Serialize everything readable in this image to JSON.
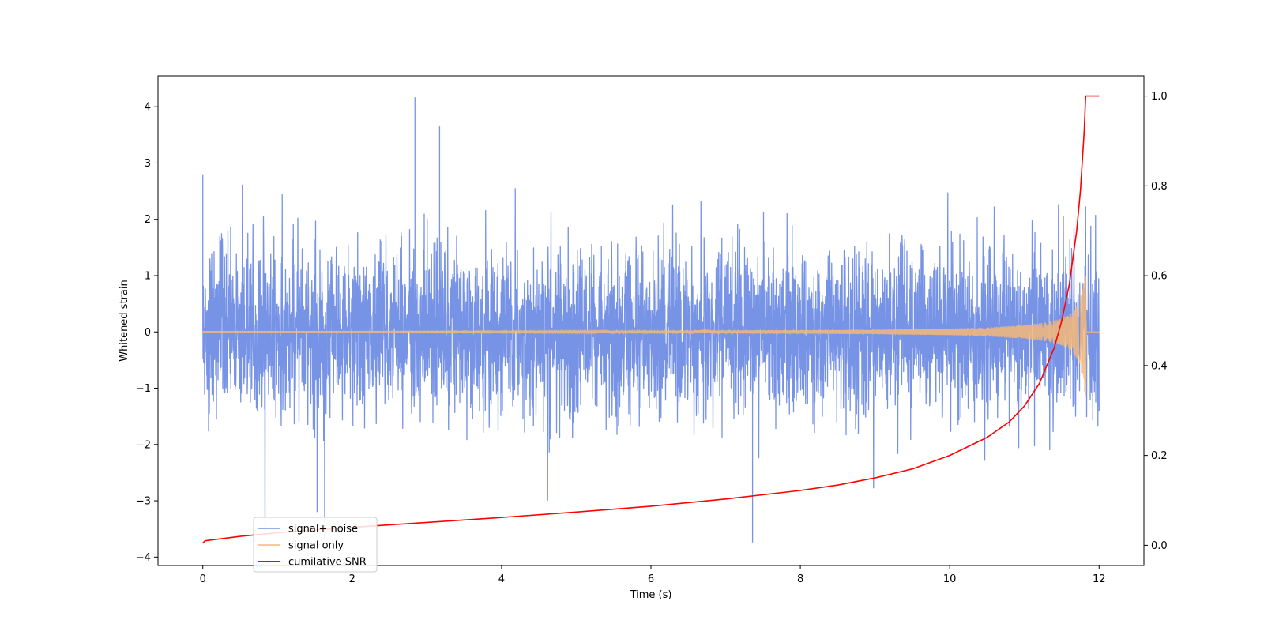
{
  "chart_data": {
    "type": "line",
    "title": "",
    "xlabel": "Time (s)",
    "ylabel": "Whitened strain",
    "y2label": "",
    "xlim": [
      -0.6,
      12.6
    ],
    "ylim": [
      -4.15,
      4.55
    ],
    "y2lim": [
      -0.045,
      1.045
    ],
    "xticks": [
      0,
      2,
      4,
      6,
      8,
      10,
      12
    ],
    "yticks": [
      -4,
      -3,
      -2,
      -1,
      0,
      1,
      2,
      3,
      4
    ],
    "y2ticks": [
      0.0,
      0.2,
      0.4,
      0.6,
      0.8,
      1.0
    ],
    "xtick_labels": [
      "0",
      "2",
      "4",
      "6",
      "8",
      "10",
      "12"
    ],
    "ytick_labels": [
      "−4",
      "−3",
      "−2",
      "−1",
      "0",
      "1",
      "2",
      "3",
      "4"
    ],
    "y2tick_labels": [
      "0.0",
      "0.2",
      "0.4",
      "0.6",
      "0.8",
      "1.0"
    ],
    "grid": false,
    "legend_position": "lower-left",
    "series": [
      {
        "name": "signal+ noise",
        "axis": "left",
        "color": "#7793e6",
        "description": "dense noise band, roughly within ±2.3 with peaks up to about 4.2 and troughs down to about -3.7, spanning t = 0 to 12 s",
        "x_range": [
          0,
          12
        ],
        "peak_max": 4.17,
        "peak_min": -3.74
      },
      {
        "name": "signal only",
        "axis": "left",
        "color": "#f5b878",
        "description": "chirp whose amplitude grows from ~0 to a peak near t = 11.82 s, then zero",
        "x": [
          0,
          2,
          4,
          6,
          8,
          9,
          10,
          10.5,
          11,
          11.3,
          11.5,
          11.65,
          11.75,
          11.82,
          11.83,
          12
        ],
        "envelope": [
          0.01,
          0.01,
          0.015,
          0.02,
          0.03,
          0.04,
          0.06,
          0.08,
          0.12,
          0.17,
          0.24,
          0.35,
          0.6,
          1.0,
          0.0,
          0.0
        ]
      },
      {
        "name": "cumilative SNR",
        "axis": "right",
        "color": "#ff0000",
        "x": [
          0,
          0.03,
          0.5,
          1,
          2,
          3,
          4,
          5,
          6,
          7,
          8,
          8.5,
          9,
          9.5,
          10,
          10.5,
          10.8,
          11,
          11.2,
          11.4,
          11.5,
          11.6,
          11.7,
          11.75,
          11.8,
          11.82,
          11.85,
          12
        ],
        "values": [
          0.005,
          0.01,
          0.02,
          0.028,
          0.04,
          0.051,
          0.062,
          0.074,
          0.087,
          0.103,
          0.122,
          0.134,
          0.15,
          0.17,
          0.2,
          0.24,
          0.275,
          0.31,
          0.36,
          0.44,
          0.5,
          0.58,
          0.7,
          0.79,
          0.92,
          1.0,
          1.0,
          1.0
        ]
      }
    ]
  }
}
